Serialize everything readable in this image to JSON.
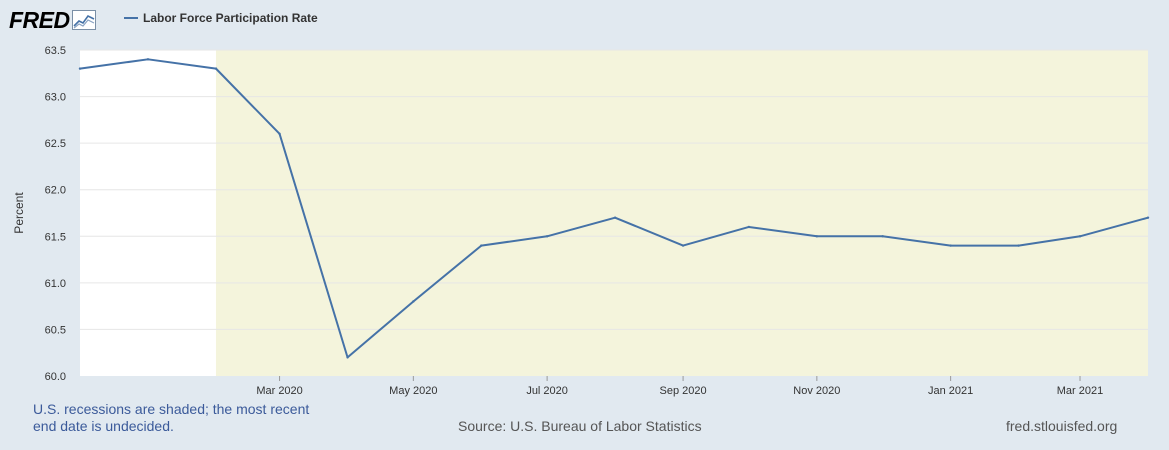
{
  "header": {
    "logo_text": "FRED",
    "logo_icon": "chart-line-icon",
    "legend_label": "Labor Force Participation Rate"
  },
  "colors": {
    "page_background": "#e1e9f0",
    "plot_background": "#ffffff",
    "recession_shade": "#f4f4dc",
    "series_line": "#4572a7",
    "gridline": "#e6e6e6"
  },
  "footer": {
    "note_line1": "U.S. recessions are shaded; the most recent",
    "note_line2": "end date is undecided.",
    "source": "Source: U.S. Bureau of Labor Statistics",
    "site": "fred.stlouisfed.org"
  },
  "chart_data": {
    "type": "line",
    "title": "",
    "xlabel": "",
    "ylabel": "Percent",
    "ylim": [
      60.0,
      63.5
    ],
    "xlim": [
      "2019-12-01",
      "2021-04-01"
    ],
    "yticks": [
      "60.0",
      "60.5",
      "61.0",
      "61.5",
      "62.0",
      "62.5",
      "63.0",
      "63.5"
    ],
    "xticks": [
      {
        "date": "2020-03-01",
        "label": "Mar 2020"
      },
      {
        "date": "2020-05-01",
        "label": "May 2020"
      },
      {
        "date": "2020-07-01",
        "label": "Jul 2020"
      },
      {
        "date": "2020-09-01",
        "label": "Sep 2020"
      },
      {
        "date": "2020-11-01",
        "label": "Nov 2020"
      },
      {
        "date": "2021-01-01",
        "label": "Jan 2021"
      },
      {
        "date": "2021-03-01",
        "label": "Mar 2021"
      }
    ],
    "grid": true,
    "legend_position": "top-left",
    "recession": {
      "start": "2020-02-01",
      "end": "2021-04-01"
    },
    "series": [
      {
        "name": "Labor Force Participation Rate",
        "x": [
          "2019-12-01",
          "2020-01-01",
          "2020-02-01",
          "2020-03-01",
          "2020-04-01",
          "2020-05-01",
          "2020-06-01",
          "2020-07-01",
          "2020-08-01",
          "2020-09-01",
          "2020-10-01",
          "2020-11-01",
          "2020-12-01",
          "2021-01-01",
          "2021-02-01",
          "2021-03-01",
          "2021-04-01"
        ],
        "values": [
          63.3,
          63.4,
          63.3,
          62.6,
          60.2,
          60.8,
          61.4,
          61.5,
          61.7,
          61.4,
          61.6,
          61.5,
          61.5,
          61.4,
          61.4,
          61.5,
          61.7
        ]
      }
    ]
  }
}
